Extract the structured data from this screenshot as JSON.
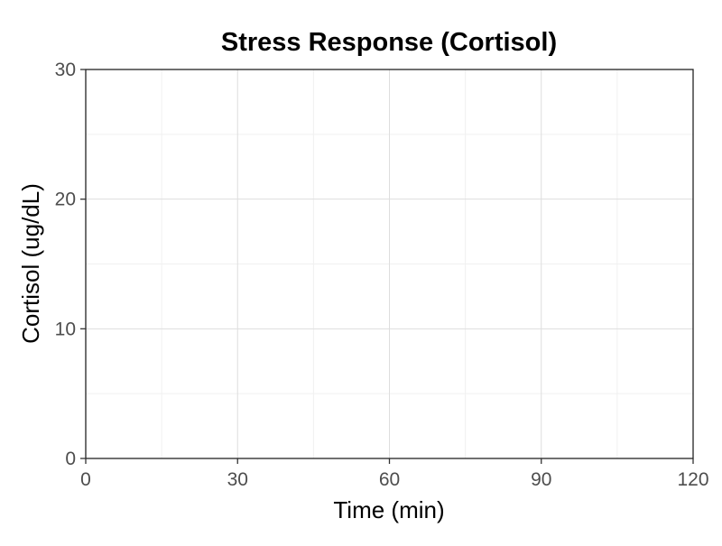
{
  "chart_data": {
    "type": "line",
    "title": "Stress Response (Cortisol)",
    "xlabel": "Time (min)",
    "ylabel": "Cortisol (ug/dL)",
    "xlim": [
      0,
      120
    ],
    "ylim": [
      0,
      30
    ],
    "x_ticks": [
      0,
      30,
      60,
      90,
      120
    ],
    "y_ticks": [
      0,
      10,
      20,
      30
    ],
    "x_ticks_minor": [
      15,
      45,
      75,
      105
    ],
    "y_ticks_minor": [
      5,
      15,
      25
    ],
    "grid": true,
    "series": []
  }
}
